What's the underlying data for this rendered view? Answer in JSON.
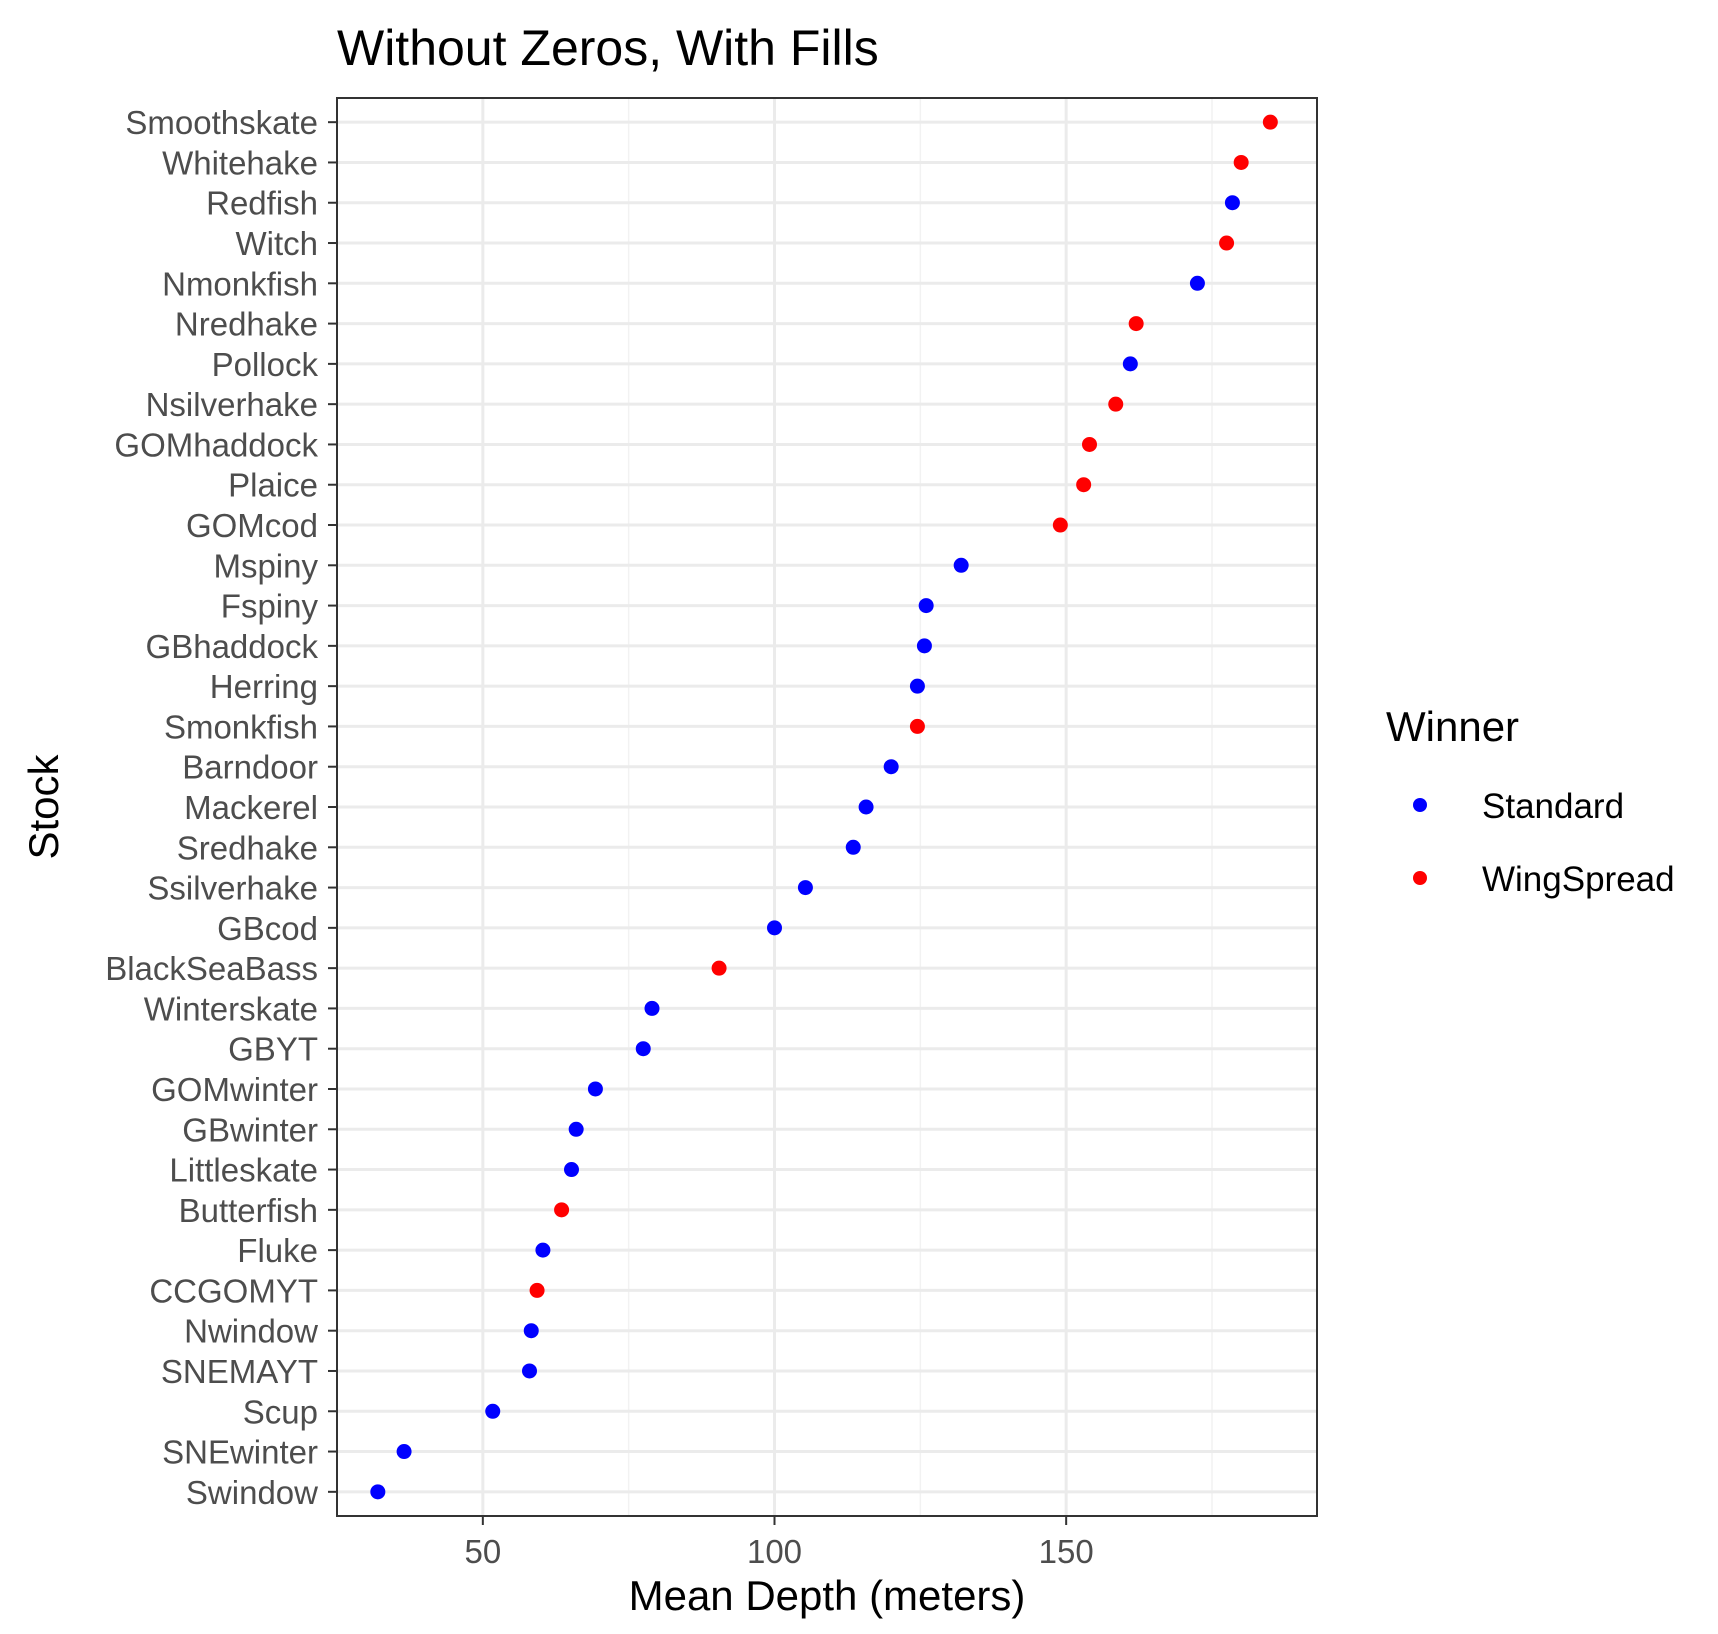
{
  "chart_data": {
    "type": "scatter",
    "title": "Without Zeros, With Fills",
    "xlabel": "Mean Depth (meters)",
    "ylabel": "Stock",
    "xlim": [
      25,
      193
    ],
    "xticks": [
      50,
      100,
      150
    ],
    "grid": true,
    "legend": {
      "title": "Winner",
      "placement": "right",
      "entries": [
        {
          "name": "Standard",
          "color": "#0000ff"
        },
        {
          "name": "WingSpread",
          "color": "#ff0000"
        }
      ]
    },
    "categories": [
      "Smoothskate",
      "Whitehake",
      "Redfish",
      "Witch",
      "Nmonkfish",
      "Nredhake",
      "Pollock",
      "Nsilverhake",
      "GOMhaddock",
      "Plaice",
      "GOMcod",
      "Mspiny",
      "Fspiny",
      "GBhaddock",
      "Herring",
      "Smonkfish",
      "Barndoor",
      "Mackerel",
      "Sredhake",
      "Ssilverhake",
      "GBcod",
      "BlackSeaBass",
      "Winterskate",
      "GBYT",
      "GOMwinter",
      "GBwinter",
      "Littleskate",
      "Butterfish",
      "Fluke",
      "CCGOMYT",
      "Nwindow",
      "SNEMAYT",
      "Scup",
      "SNEwinter",
      "Swindow"
    ],
    "points": [
      {
        "stock": "Smoothskate",
        "x": 185,
        "winner": "WingSpread"
      },
      {
        "stock": "Whitehake",
        "x": 180,
        "winner": "WingSpread"
      },
      {
        "stock": "Redfish",
        "x": 178.5,
        "winner": "Standard"
      },
      {
        "stock": "Witch",
        "x": 177.5,
        "winner": "WingSpread"
      },
      {
        "stock": "Nmonkfish",
        "x": 172.5,
        "winner": "Standard"
      },
      {
        "stock": "Nredhake",
        "x": 162,
        "winner": "WingSpread"
      },
      {
        "stock": "Pollock",
        "x": 161,
        "winner": "Standard"
      },
      {
        "stock": "Nsilverhake",
        "x": 158.5,
        "winner": "WingSpread"
      },
      {
        "stock": "GOMhaddock",
        "x": 154,
        "winner": "WingSpread"
      },
      {
        "stock": "Plaice",
        "x": 153,
        "winner": "WingSpread"
      },
      {
        "stock": "GOMcod",
        "x": 149,
        "winner": "WingSpread"
      },
      {
        "stock": "Mspiny",
        "x": 132,
        "winner": "Standard"
      },
      {
        "stock": "Fspiny",
        "x": 126,
        "winner": "Standard"
      },
      {
        "stock": "GBhaddock",
        "x": 125.7,
        "winner": "Standard"
      },
      {
        "stock": "Herring",
        "x": 124.5,
        "winner": "Standard"
      },
      {
        "stock": "Smonkfish",
        "x": 124.5,
        "winner": "WingSpread"
      },
      {
        "stock": "Barndoor",
        "x": 120,
        "winner": "Standard"
      },
      {
        "stock": "Mackerel",
        "x": 115.7,
        "winner": "Standard"
      },
      {
        "stock": "Sredhake",
        "x": 113.5,
        "winner": "Standard"
      },
      {
        "stock": "Ssilverhake",
        "x": 105.3,
        "winner": "Standard"
      },
      {
        "stock": "GBcod",
        "x": 100,
        "winner": "Standard"
      },
      {
        "stock": "BlackSeaBass",
        "x": 90.5,
        "winner": "WingSpread"
      },
      {
        "stock": "Winterskate",
        "x": 79,
        "winner": "Standard"
      },
      {
        "stock": "GBYT",
        "x": 77.5,
        "winner": "Standard"
      },
      {
        "stock": "GOMwinter",
        "x": 69.3,
        "winner": "Standard"
      },
      {
        "stock": "GBwinter",
        "x": 66,
        "winner": "Standard"
      },
      {
        "stock": "Littleskate",
        "x": 65.2,
        "winner": "Standard"
      },
      {
        "stock": "Butterfish",
        "x": 63.5,
        "winner": "WingSpread"
      },
      {
        "stock": "Fluke",
        "x": 60.3,
        "winner": "Standard"
      },
      {
        "stock": "CCGOMYT",
        "x": 59.3,
        "winner": "WingSpread"
      },
      {
        "stock": "Nwindow",
        "x": 58.3,
        "winner": "Standard"
      },
      {
        "stock": "SNEMAYT",
        "x": 58,
        "winner": "Standard"
      },
      {
        "stock": "Scup",
        "x": 51.7,
        "winner": "Standard"
      },
      {
        "stock": "SNEwinter",
        "x": 36.5,
        "winner": "Standard"
      },
      {
        "stock": "Swindow",
        "x": 32,
        "winner": "Standard"
      }
    ]
  }
}
